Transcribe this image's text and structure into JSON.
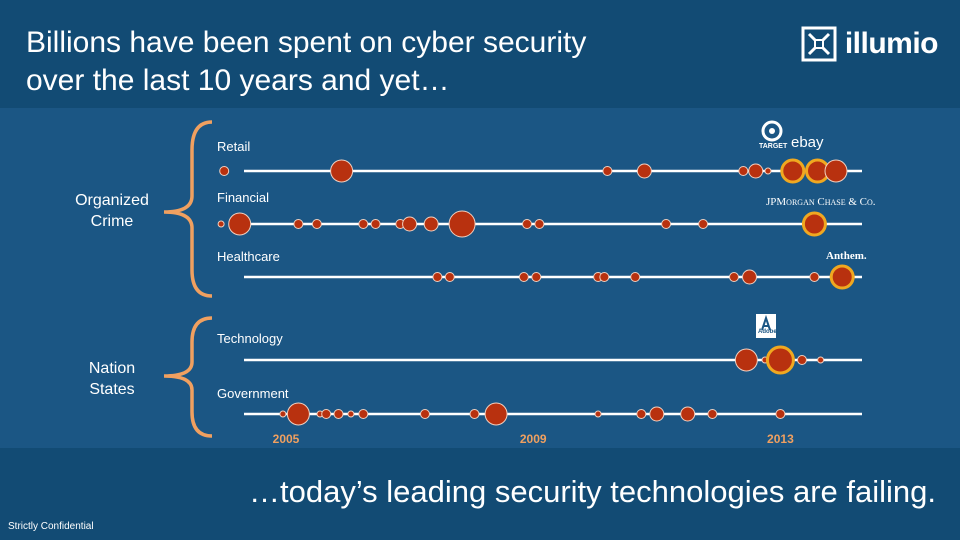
{
  "header": {
    "title_line1": "Billions have been spent on cyber security",
    "title_line2": "over the last 10 years and yet…",
    "logo_text": "illumio"
  },
  "groups": [
    {
      "line1": "Organized",
      "line2": "Crime"
    },
    {
      "line1": "Nation",
      "line2": "States"
    }
  ],
  "brands": {
    "target": "TARGET",
    "ebay": "ebay",
    "jpmorgan": "JPMorgan Chase & Co.",
    "anthem": "Anthem.",
    "adobe": "Adobe"
  },
  "tagline": "…today’s leading security technologies are failing.",
  "confidential": "Strictly Confidential",
  "colors": {
    "breach_fill": "#b8310f",
    "highlight_ring": "#f0a820",
    "line": "#ffffff",
    "bracket": "#f0a060"
  },
  "chart_data": {
    "type": "scatter",
    "x_ticks": [
      "2005",
      "2009",
      "2013"
    ],
    "rows": [
      {
        "label": "Retail",
        "points": [
          {
            "x": 2004.0,
            "size": "s"
          },
          {
            "x": 2005.9,
            "size": "l"
          },
          {
            "x": 2010.2,
            "size": "s"
          },
          {
            "x": 2010.8,
            "size": "m"
          },
          {
            "x": 2012.4,
            "size": "s"
          },
          {
            "x": 2012.6,
            "size": "m"
          },
          {
            "x": 2012.8,
            "size": "xs"
          },
          {
            "x": 2013.2,
            "size": "l",
            "highlight": true
          },
          {
            "x": 2013.6,
            "size": "l",
            "highlight": true
          },
          {
            "x": 2013.9,
            "size": "l"
          }
        ]
      },
      {
        "label": "Financial",
        "points": [
          {
            "x": 2003.95,
            "size": "xs"
          },
          {
            "x": 2004.25,
            "size": "l"
          },
          {
            "x": 2005.2,
            "size": "s"
          },
          {
            "x": 2005.5,
            "size": "s"
          },
          {
            "x": 2006.25,
            "size": "s"
          },
          {
            "x": 2006.45,
            "size": "s"
          },
          {
            "x": 2006.85,
            "size": "s"
          },
          {
            "x": 2007.0,
            "size": "m"
          },
          {
            "x": 2007.35,
            "size": "m"
          },
          {
            "x": 2007.85,
            "size": "xl"
          },
          {
            "x": 2008.9,
            "size": "s"
          },
          {
            "x": 2009.1,
            "size": "s"
          },
          {
            "x": 2011.15,
            "size": "s"
          },
          {
            "x": 2011.75,
            "size": "s"
          },
          {
            "x": 2013.55,
            "size": "l",
            "highlight": true
          }
        ]
      },
      {
        "label": "Healthcare",
        "points": [
          {
            "x": 2007.45,
            "size": "s"
          },
          {
            "x": 2007.65,
            "size": "s"
          },
          {
            "x": 2008.85,
            "size": "s"
          },
          {
            "x": 2009.05,
            "size": "s"
          },
          {
            "x": 2010.05,
            "size": "s"
          },
          {
            "x": 2010.15,
            "size": "s"
          },
          {
            "x": 2010.65,
            "size": "s"
          },
          {
            "x": 2012.25,
            "size": "s"
          },
          {
            "x": 2012.5,
            "size": "m"
          },
          {
            "x": 2013.55,
            "size": "s"
          },
          {
            "x": 2014.0,
            "size": "l",
            "highlight": true
          }
        ]
      },
      {
        "label": "Technology",
        "points": [
          {
            "x": 2012.45,
            "size": "l"
          },
          {
            "x": 2012.75,
            "size": "xs"
          },
          {
            "x": 2013.0,
            "size": "xl",
            "highlight": true
          },
          {
            "x": 2013.35,
            "size": "s"
          },
          {
            "x": 2013.65,
            "size": "xs"
          }
        ]
      },
      {
        "label": "Government",
        "points": [
          {
            "x": 2004.95,
            "size": "xs"
          },
          {
            "x": 2005.2,
            "size": "l"
          },
          {
            "x": 2005.55,
            "size": "xs"
          },
          {
            "x": 2005.65,
            "size": "s"
          },
          {
            "x": 2005.85,
            "size": "s"
          },
          {
            "x": 2006.05,
            "size": "xs"
          },
          {
            "x": 2006.25,
            "size": "s"
          },
          {
            "x": 2007.25,
            "size": "s"
          },
          {
            "x": 2008.05,
            "size": "s"
          },
          {
            "x": 2008.4,
            "size": "l"
          },
          {
            "x": 2010.05,
            "size": "xs"
          },
          {
            "x": 2010.75,
            "size": "s"
          },
          {
            "x": 2011.0,
            "size": "m"
          },
          {
            "x": 2011.5,
            "size": "m"
          },
          {
            "x": 2011.9,
            "size": "s"
          },
          {
            "x": 2013.0,
            "size": "s"
          }
        ]
      }
    ]
  }
}
